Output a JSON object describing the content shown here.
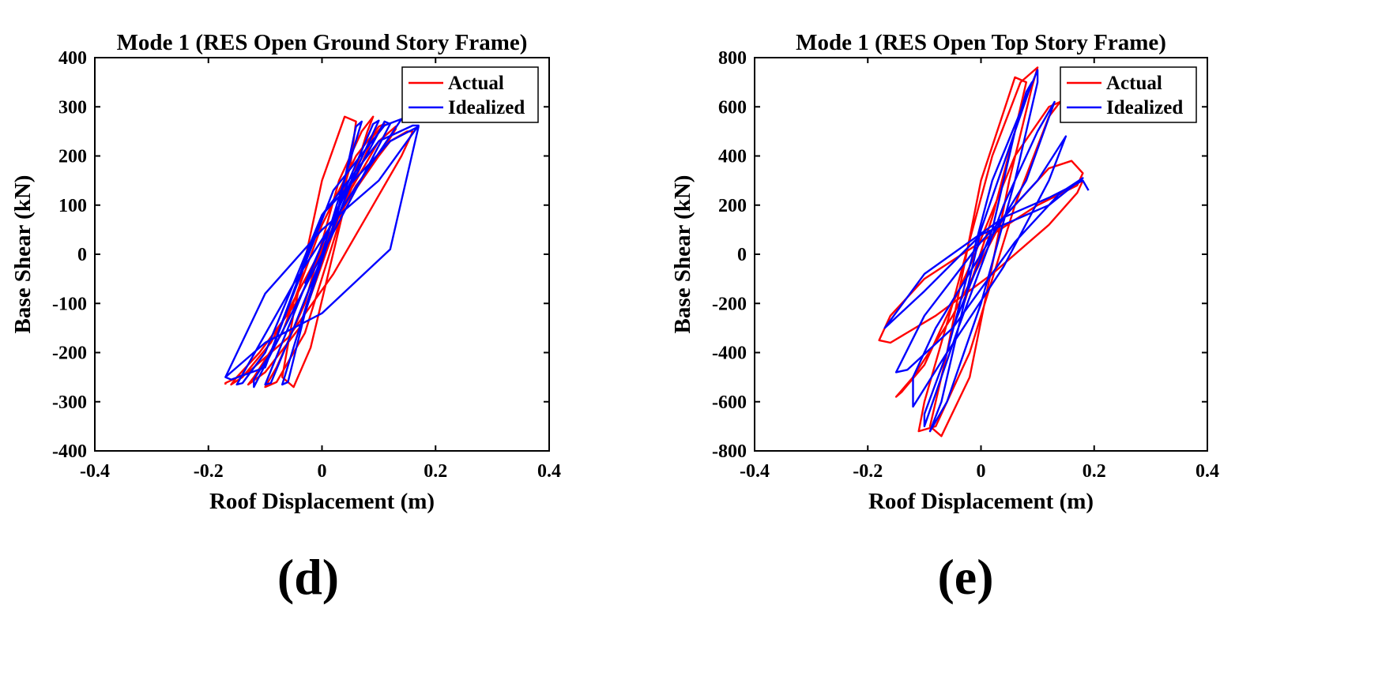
{
  "panels": [
    {
      "caption": "(d)",
      "chart_data": {
        "type": "line",
        "title": "Mode 1 (RES Open Ground Story Frame)",
        "xlabel": "Roof Displacement (m)",
        "ylabel": "Base Shear (kN)",
        "xlim": [
          -0.4,
          0.4
        ],
        "ylim": [
          -400,
          400
        ],
        "xticks": [
          -0.4,
          -0.2,
          0,
          0.2,
          0.4
        ],
        "xtick_labels": [
          "-0.4",
          "-0.2",
          "0",
          "0.2",
          "0.4"
        ],
        "yticks": [
          400,
          300,
          200,
          100,
          0,
          -100,
          -200,
          -300,
          -400
        ],
        "ytick_labels": [
          "400",
          "300",
          "200",
          "100",
          "0",
          "-100",
          "-200",
          "-300",
          "-400"
        ],
        "legend_position": "top-right",
        "series": [
          {
            "name": "Actual",
            "color": "#ff0000",
            "x": [
              -0.02,
              0.02,
              0.05,
              0.06,
              0.04,
              0.0,
              -0.05,
              -0.07,
              -0.05,
              -0.02,
              0.04,
              0.08,
              0.09,
              0.07,
              0.03,
              -0.03,
              -0.08,
              -0.1,
              -0.08,
              -0.03,
              0.04,
              0.09,
              0.11,
              0.1,
              0.06,
              0.0,
              -0.07,
              -0.12,
              -0.13,
              -0.1,
              -0.04,
              0.04,
              0.1,
              0.13,
              0.13,
              0.1,
              0.04,
              -0.04,
              -0.11,
              -0.15,
              -0.16,
              -0.14,
              -0.09,
              -0.02,
              0.06,
              0.12,
              0.15,
              0.16,
              0.14,
              0.09,
              0.02,
              -0.06,
              -0.13,
              -0.17,
              -0.17
            ],
            "y": [
              -80,
              60,
              180,
              270,
              280,
              150,
              -120,
              -250,
              -270,
              -190,
              100,
              250,
              280,
              250,
              150,
              -100,
              -230,
              -270,
              -260,
              -160,
              100,
              240,
              265,
              260,
              200,
              60,
              -160,
              -250,
              -265,
              -240,
              -150,
              110,
              230,
              260,
              255,
              200,
              100,
              -90,
              -200,
              -250,
              -265,
              -250,
              -180,
              -30,
              140,
              230,
              250,
              250,
              200,
              100,
              -40,
              -170,
              -240,
              -262,
              -265
            ]
          },
          {
            "name": "Idealized",
            "color": "#0000ff",
            "x": [
              -0.03,
              0.03,
              0.06,
              0.07,
              0.0,
              -0.07,
              -0.06,
              -0.03,
              0.04,
              0.09,
              0.1,
              0.0,
              -0.1,
              -0.09,
              -0.05,
              0.05,
              0.11,
              0.12,
              0.0,
              -0.12,
              -0.12,
              -0.09,
              0.02,
              0.11,
              0.14,
              0.05,
              -0.05,
              -0.15,
              -0.14,
              -0.1,
              0.0,
              0.1,
              0.16,
              0.17,
              0.1,
              0.0,
              -0.1,
              -0.17,
              -0.16,
              -0.1,
              0.0,
              0.12,
              0.17,
              0.12,
              0.0,
              -0.1,
              -0.17
            ],
            "y": [
              -60,
              100,
              260,
              270,
              0,
              -265,
              -260,
              -120,
              130,
              265,
              272,
              20,
              -265,
              -262,
              -150,
              140,
              270,
              265,
              0,
              -270,
              -255,
              -200,
              130,
              262,
              275,
              120,
              -60,
              -265,
              -262,
              -200,
              80,
              230,
              262,
              262,
              150,
              50,
              -80,
              -250,
              -255,
              -230,
              80,
              230,
              260,
              10,
              -120,
              -180,
              -250
            ]
          }
        ]
      }
    },
    {
      "caption": "(e)",
      "chart_data": {
        "type": "line",
        "title": "Mode 1 (RES Open Top Story Frame)",
        "xlabel": "Roof Displacement (m)",
        "ylabel": "Base Shear (kN)",
        "xlim": [
          -0.4,
          0.4
        ],
        "ylim": [
          -800,
          800
        ],
        "xticks": [
          -0.4,
          -0.2,
          0,
          0.2,
          0.4
        ],
        "xtick_labels": [
          "-0.4",
          "-0.2",
          "0",
          "0.2",
          "0.4"
        ],
        "yticks": [
          800,
          600,
          400,
          200,
          0,
          -200,
          -400,
          -600,
          -800
        ],
        "ytick_labels": [
          "800",
          "600",
          "400",
          "200",
          "0",
          "-200",
          "-400",
          "-600",
          "-800"
        ],
        "legend_position": "top-right",
        "series": [
          {
            "name": "Actual",
            "color": "#ff0000",
            "x": [
              -0.03,
              0.02,
              0.06,
              0.08,
              0.06,
              0.0,
              -0.06,
              -0.09,
              -0.07,
              -0.02,
              0.05,
              0.09,
              0.1,
              0.07,
              0.02,
              -0.05,
              -0.1,
              -0.11,
              -0.08,
              -0.02,
              0.06,
              0.12,
              0.14,
              0.12,
              0.06,
              -0.02,
              -0.1,
              -0.14,
              -0.15,
              -0.12,
              -0.05,
              0.04,
              0.12,
              0.16,
              0.18,
              0.17,
              0.1,
              0.0,
              -0.1,
              -0.16,
              -0.18,
              -0.16,
              -0.08,
              0.02,
              0.12,
              0.17,
              0.18
            ],
            "y": [
              -200,
              150,
              500,
              700,
              720,
              300,
              -400,
              -700,
              -740,
              -500,
              300,
              680,
              760,
              700,
              400,
              -200,
              -600,
              -720,
              -700,
              -400,
              200,
              560,
              620,
              600,
              400,
              -50,
              -450,
              -560,
              -580,
              -500,
              -250,
              150,
              350,
              380,
              330,
              280,
              200,
              50,
              -100,
              -250,
              -350,
              -360,
              -250,
              -80,
              120,
              250,
              300
            ]
          },
          {
            "name": "Idealized",
            "color": "#0000ff",
            "x": [
              -0.05,
              0.02,
              0.06,
              0.08,
              0.09,
              0.0,
              -0.07,
              -0.09,
              -0.06,
              0.0,
              0.06,
              0.1,
              0.1,
              0.02,
              -0.06,
              -0.1,
              -0.1,
              -0.04,
              0.04,
              0.1,
              0.13,
              0.08,
              0.0,
              -0.08,
              -0.12,
              -0.12,
              -0.06,
              0.04,
              0.12,
              0.15,
              0.1,
              0.0,
              -0.1,
              -0.15,
              -0.13,
              -0.05,
              0.06,
              0.14,
              0.18,
              0.12,
              0.0,
              -0.1,
              -0.17,
              -0.1,
              0.04,
              0.12,
              0.18,
              0.19
            ],
            "y": [
              -300,
              100,
              500,
              660,
              700,
              100,
              -600,
              -720,
              -600,
              -200,
              300,
              700,
              750,
              300,
              -400,
              -650,
              -700,
              -300,
              200,
              500,
              620,
              300,
              0,
              -300,
              -500,
              -620,
              -400,
              -50,
              300,
              480,
              300,
              50,
              -250,
              -480,
              -470,
              -300,
              50,
              250,
              310,
              200,
              80,
              -150,
              -300,
              -80,
              150,
              230,
              300,
              260
            ]
          }
        ]
      }
    }
  ]
}
